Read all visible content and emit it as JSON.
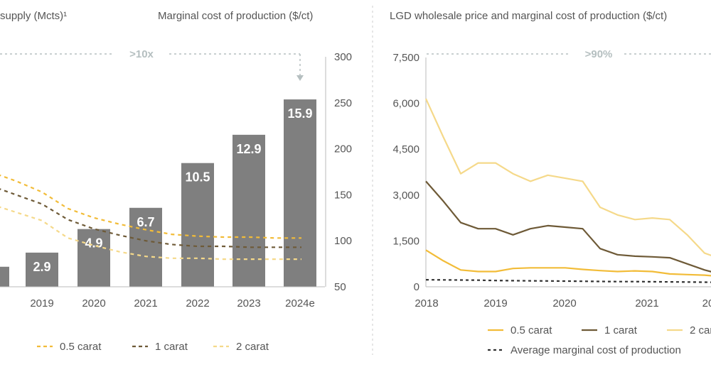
{
  "colors": {
    "bar": "#7f7f7f",
    "bar_label": "#ffffff",
    "axis_text": "#555555",
    "bracket": "#b5bfc0",
    "gold": "#f2bc38",
    "brown": "#6e5a37",
    "light_gold": "#f5d98a",
    "dark": "#333333",
    "divider": "#cccccc"
  },
  "left_panel": {
    "title_left": "supply (Mcts)¹",
    "title_right": "Marginal cost of production ($/ct)",
    "bracket_label": ">10x",
    "legend": [
      "0.5 carat",
      "1 carat",
      "2 carat"
    ]
  },
  "right_panel": {
    "title": "LGD wholesale price and marginal cost of production ($/ct)",
    "bracket_label": ">90%",
    "legend": [
      "0.5 carat",
      "1 carat",
      "2 carat",
      "Average marginal cost of production"
    ]
  },
  "chart_data": [
    {
      "type": "bar",
      "title": "supply (Mcts)¹",
      "categories": [
        "8",
        "2019",
        "2020",
        "2021",
        "2022",
        "2023",
        "2024e"
      ],
      "values": [
        1.7,
        2.9,
        4.9,
        6.7,
        10.5,
        12.9,
        15.9
      ],
      "value_labels": [
        "",
        "2.9",
        "4.9",
        "6.7",
        "10.5",
        "12.9",
        "15.9"
      ],
      "ylim": [
        0,
        20
      ]
    },
    {
      "type": "line",
      "title": "Marginal cost of production ($/ct)",
      "x": [
        2017.5,
        2018,
        2018.5,
        2019,
        2019.5,
        2020,
        2020.5,
        2021,
        2021.5,
        2022,
        2022.5,
        2023,
        2023.5,
        2024
      ],
      "yticks": [
        "300",
        "250",
        "200",
        "150",
        "100",
        "50"
      ],
      "ylim": [
        50,
        300
      ],
      "series": [
        {
          "name": "0.5 carat",
          "values": [
            185,
            175,
            165,
            153,
            135,
            125,
            118,
            112,
            107,
            105,
            104,
            104,
            103,
            103
          ]
        },
        {
          "name": "1 carat",
          "values": [
            170,
            160,
            150,
            140,
            123,
            113,
            106,
            100,
            96,
            94,
            94,
            93,
            93,
            93
          ]
        },
        {
          "name": "2 carat",
          "values": [
            150,
            140,
            131,
            122,
            103,
            95,
            88,
            83,
            81,
            81,
            80,
            80,
            80,
            80
          ]
        }
      ]
    },
    {
      "type": "line",
      "title": "LGD wholesale price and marginal cost of production ($/ct)",
      "x_ticks": [
        "2018",
        "2019",
        "2020",
        "2021",
        "20"
      ],
      "yticks": [
        "7,500",
        "6,000",
        "4,500",
        "3,000",
        "1,500",
        "0"
      ],
      "ylim": [
        0,
        7500
      ],
      "x": [
        2018,
        2018.25,
        2018.5,
        2018.75,
        2019,
        2019.25,
        2019.5,
        2019.75,
        2020,
        2020.25,
        2020.5,
        2020.75,
        2021,
        2021.25,
        2021.5,
        2021.75,
        2022,
        2022.25
      ],
      "series": [
        {
          "name": "0.5 carat",
          "values": [
            1200,
            850,
            550,
            500,
            500,
            600,
            620,
            620,
            620,
            570,
            530,
            500,
            520,
            500,
            420,
            400,
            380,
            330
          ]
        },
        {
          "name": "1 carat",
          "values": [
            3450,
            2800,
            2100,
            1900,
            1900,
            1700,
            1900,
            2000,
            1950,
            1900,
            1250,
            1050,
            1000,
            980,
            950,
            750,
            550,
            400
          ]
        },
        {
          "name": "2 carat",
          "values": [
            6150,
            4900,
            3700,
            4050,
            4050,
            3700,
            3450,
            3650,
            3550,
            3450,
            2600,
            2350,
            2200,
            2250,
            2200,
            1700,
            1100,
            900
          ]
        },
        {
          "name": "Average marginal cost of production",
          "values": [
            230,
            225,
            220,
            215,
            205,
            200,
            195,
            190,
            185,
            180,
            175,
            170,
            170,
            165,
            160,
            155,
            150,
            145
          ]
        }
      ]
    }
  ]
}
